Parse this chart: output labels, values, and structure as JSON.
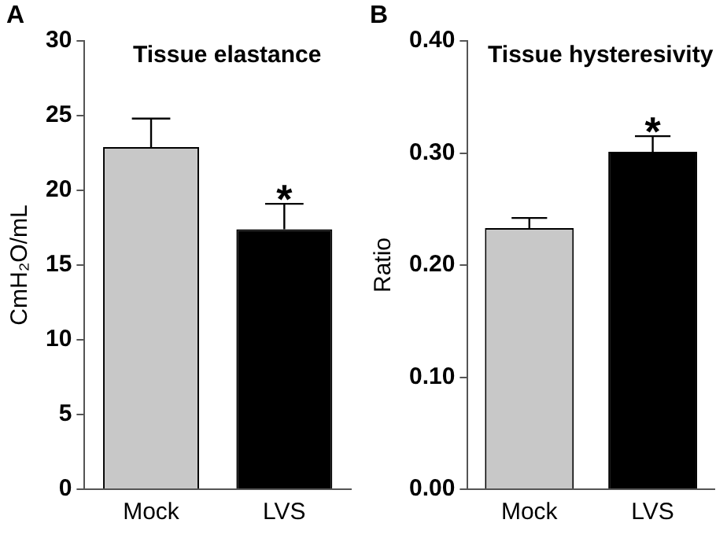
{
  "chart_data": [
    {
      "type": "bar",
      "title": "Tissue elastance",
      "ylabel": "CmH₂O/mL",
      "categories": [
        "Mock",
        "LVS"
      ],
      "values": [
        22.9,
        17.4
      ],
      "colors": [
        "#c8c8c8",
        "#000000"
      ],
      "errors": [
        [
          22.9,
          24.8
        ],
        [
          17.4,
          19.1
        ]
      ],
      "ylim": [
        0,
        30
      ],
      "yticks": [
        0,
        5,
        10,
        15,
        20,
        25,
        30
      ],
      "grid": false,
      "legend": false,
      "annotations": [
        "A",
        {
          "text": "*",
          "x": "LVS",
          "y": 19.1
        }
      ]
    },
    {
      "type": "bar",
      "title": "Tissue hysteresivity",
      "ylabel": "Ratio",
      "categories": [
        "Mock",
        "LVS"
      ],
      "values": [
        0.233,
        0.301
      ],
      "colors": [
        "#c8c8c8",
        "#000000"
      ],
      "errors": [
        [
          0.233,
          0.242
        ],
        [
          0.301,
          0.315
        ]
      ],
      "ylim": [
        0,
        0.4
      ],
      "yticks": [
        {
          "value": 0,
          "label": "0.00"
        },
        {
          "value": 0.1,
          "label": "0.10"
        },
        {
          "value": 0.2,
          "label": "0.20"
        },
        {
          "value": 0.3,
          "label": "0.30"
        },
        {
          "value": 0.4,
          "label": "0.40"
        }
      ],
      "grid": false,
      "legend": false,
      "annotations": [
        "B",
        {
          "text": "*",
          "x": "LVS",
          "y": 0.315
        }
      ]
    }
  ]
}
